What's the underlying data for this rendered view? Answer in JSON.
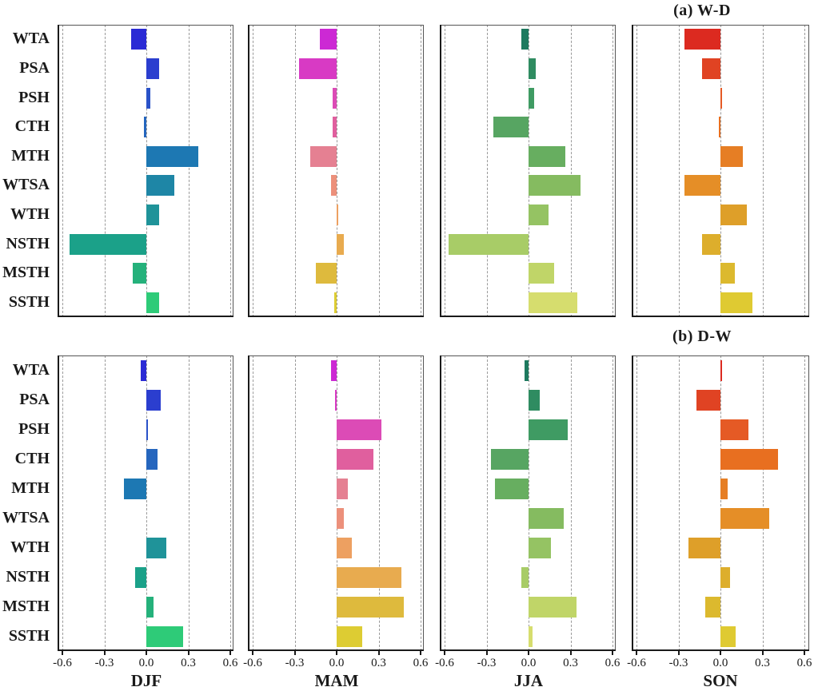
{
  "figure": {
    "background": "#ffffff",
    "spine_color": "#1a1a1a",
    "grid_color": "#9a9a9a",
    "title_a": "(a) W-D",
    "title_b": "(b) D-W"
  },
  "chart_data": {
    "type": "bar",
    "orientation": "horizontal",
    "title": "",
    "categories": [
      "WTA",
      "PSA",
      "PSH",
      "CTH",
      "MTH",
      "WTSA",
      "WTH",
      "NSTH",
      "MSTH",
      "SSTH"
    ],
    "xlim": [
      -0.6,
      0.6
    ],
    "x_ticks": [
      -0.6,
      -0.3,
      0.0,
      0.3,
      0.6
    ],
    "x_tick_labels": [
      "-0.6",
      "-0.3",
      "0.0",
      "0.3",
      "0.6"
    ],
    "grid": "vertical-dashed",
    "legend_position": "none",
    "palettes": {
      "DJF": [
        "#2b2bd5",
        "#2b3ecf",
        "#2a52c8",
        "#2566be",
        "#1d78b3",
        "#1e86a6",
        "#1f9399",
        "#1ba189",
        "#25b17b",
        "#2ecb78"
      ],
      "MAM": [
        "#cc29d4",
        "#d83ac4",
        "#dc4bb6",
        "#e05f9e",
        "#e58092",
        "#ec907b",
        "#eda061",
        "#e8ab4f",
        "#deba3d",
        "#ddcc33"
      ],
      "JJA": [
        "#1e7a5f",
        "#2f8c61",
        "#3f9b63",
        "#57a562",
        "#67ae60",
        "#85bb60",
        "#95c363",
        "#a8cc67",
        "#c0d568",
        "#d6dd6e"
      ],
      "SON": [
        "#dc2a20",
        "#e04323",
        "#e55a25",
        "#e86f20",
        "#e67e24",
        "#e58e27",
        "#de9f29",
        "#ddae2c",
        "#dcb92e",
        "#dfca32"
      ]
    },
    "rows": [
      {
        "title": "(a) W-D",
        "panels": [
          {
            "season": "DJF",
            "values": [
              -0.11,
              0.09,
              0.03,
              -0.02,
              0.37,
              0.2,
              0.09,
              -0.55,
              -0.1,
              0.09
            ]
          },
          {
            "season": "MAM",
            "values": [
              -0.12,
              -0.27,
              -0.03,
              -0.03,
              -0.19,
              -0.04,
              0.01,
              0.05,
              -0.15,
              -0.02
            ]
          },
          {
            "season": "JJA",
            "values": [
              -0.05,
              0.05,
              0.04,
              -0.25,
              0.26,
              0.37,
              0.14,
              -0.57,
              0.18,
              0.35
            ]
          },
          {
            "season": "SON",
            "values": [
              -0.26,
              -0.13,
              0.01,
              -0.01,
              0.16,
              -0.26,
              0.19,
              -0.13,
              0.1,
              0.23
            ]
          }
        ]
      },
      {
        "title": "(b) D-W",
        "panels": [
          {
            "season": "DJF",
            "values": [
              -0.04,
              0.1,
              0.01,
              0.08,
              -0.16,
              0.0,
              0.14,
              -0.08,
              0.05,
              0.26
            ]
          },
          {
            "season": "MAM",
            "values": [
              -0.04,
              -0.01,
              0.32,
              0.26,
              0.08,
              0.05,
              0.11,
              0.46,
              0.48,
              0.18
            ]
          },
          {
            "season": "JJA",
            "values": [
              -0.03,
              0.08,
              0.28,
              -0.27,
              -0.24,
              0.25,
              0.16,
              -0.05,
              0.34,
              0.03
            ]
          },
          {
            "season": "SON",
            "values": [
              0.01,
              -0.17,
              0.2,
              0.41,
              0.05,
              0.35,
              -0.23,
              0.07,
              -0.11,
              0.11
            ]
          }
        ]
      }
    ]
  }
}
